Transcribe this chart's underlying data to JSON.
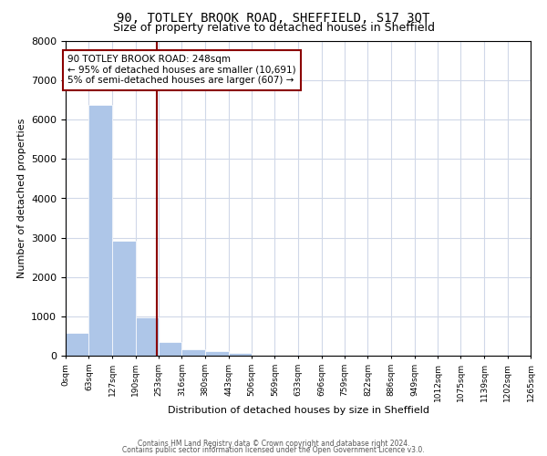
{
  "title1": "90, TOTLEY BROOK ROAD, SHEFFIELD, S17 3QT",
  "title2": "Size of property relative to detached houses in Sheffield",
  "xlabel": "Distribution of detached houses by size in Sheffield",
  "ylabel": "Number of detached properties",
  "annotation_line1": "90 TOTLEY BROOK ROAD: 248sqm",
  "annotation_line2": "← 95% of detached houses are smaller (10,691)",
  "annotation_line3": "5% of semi-detached houses are larger (607) →",
  "property_size": 248,
  "bin_edges": [
    0,
    63,
    127,
    190,
    253,
    316,
    380,
    443,
    506,
    569,
    633,
    696,
    759,
    822,
    886,
    949,
    1012,
    1075,
    1139,
    1202,
    1265
  ],
  "bin_counts": [
    570,
    6370,
    2920,
    980,
    350,
    155,
    110,
    65,
    0,
    0,
    0,
    0,
    0,
    0,
    0,
    0,
    0,
    0,
    0,
    0
  ],
  "bar_color": "#aec6e8",
  "vline_color": "#8b0000",
  "annotation_box_color": "#8b0000",
  "background_color": "#ffffff",
  "grid_color": "#d0d8e8",
  "ylim": [
    0,
    8000
  ],
  "yticks": [
    0,
    1000,
    2000,
    3000,
    4000,
    5000,
    6000,
    7000,
    8000
  ],
  "footer1": "Contains HM Land Registry data © Crown copyright and database right 2024.",
  "footer2": "Contains public sector information licensed under the Open Government Licence v3.0."
}
